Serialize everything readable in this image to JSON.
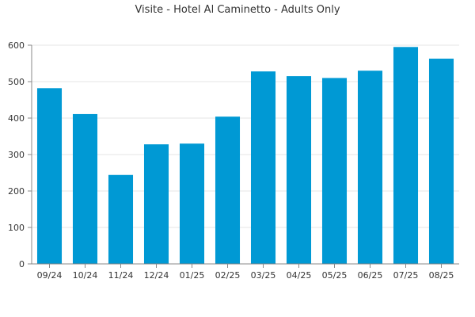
{
  "chart_data": {
    "type": "bar",
    "title": "Visite - Hotel Al Caminetto - Adults Only",
    "xlabel": "",
    "ylabel": "",
    "categories": [
      "09/24",
      "10/24",
      "11/24",
      "12/24",
      "01/25",
      "02/25",
      "03/25",
      "04/25",
      "05/25",
      "06/25",
      "07/25",
      "08/25"
    ],
    "values": [
      482,
      411,
      244,
      328,
      330,
      404,
      528,
      515,
      510,
      530,
      595,
      563
    ],
    "ylim": [
      0,
      600
    ],
    "yticks": [
      0,
      100,
      200,
      300,
      400,
      500,
      600
    ],
    "grid": true,
    "legend": "none",
    "bar_color": "#0099d4"
  }
}
